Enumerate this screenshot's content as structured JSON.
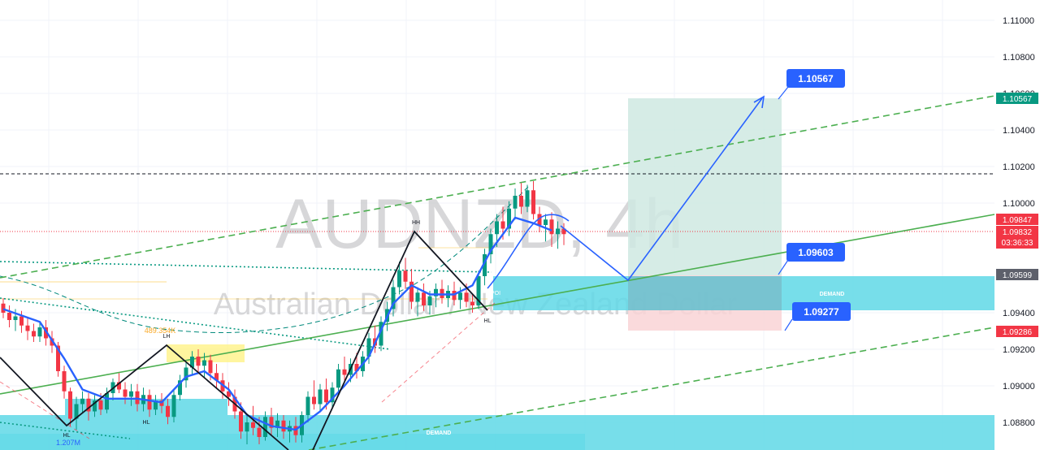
{
  "watermark": {
    "symbol": "AUDNZD, 4h",
    "name": "Australian Dollar / New Zealand Dollar"
  },
  "price_axis": {
    "ticks": [
      "1.11000",
      "1.10800",
      "1.10600",
      "1.10400",
      "1.10200",
      "1.10000",
      "1.09400",
      "1.09200",
      "1.09000",
      "1.08800"
    ]
  },
  "axis_tags": [
    {
      "value": "1.10567",
      "color": "#089981"
    },
    {
      "value": "1.09847",
      "color": "#f23645"
    },
    {
      "value": "1.09832",
      "color": "#f23645",
      "sub": "03:36:33"
    },
    {
      "value": "1.09599",
      "color": "#5d606b"
    },
    {
      "value": "1.09286",
      "color": "#f23645"
    }
  ],
  "callouts": [
    "1.10567",
    "1.09603",
    "1.09277"
  ],
  "zone_labels": {
    "demand_upper": "DEMAND",
    "demand_lower": "DEMAND",
    "poi": "POI"
  },
  "swing_labels": {
    "hh": "HH",
    "hl_right": "HL",
    "lh_left": "LH",
    "hl_left": "HL",
    "hl_far": "HL"
  },
  "volume_labels": {
    "v1": "489.354K",
    "v2": "1.207M"
  },
  "colors": {
    "bull": "#089981",
    "bear": "#f23645",
    "demand": "#5fd8e6",
    "projection": "#2962ff",
    "ma": "#2962ff",
    "trendline": "#4caf50",
    "target_zone": "#cfe9e2",
    "stop_zone": "#f9d3d6"
  },
  "chart_data": {
    "type": "candlestick",
    "symbol": "AUDNZD",
    "timeframe": "4h",
    "ylim": [
      1.0868,
      1.1116
    ],
    "candles": [
      [
        1.0945,
        1.0948,
        1.0937,
        1.094
      ],
      [
        1.094,
        1.0944,
        1.0932,
        1.0936
      ],
      [
        1.0936,
        1.0942,
        1.093,
        1.0938
      ],
      [
        1.0938,
        1.0941,
        1.0929,
        1.0933
      ],
      [
        1.0933,
        1.0937,
        1.0925,
        1.093
      ],
      [
        1.093,
        1.0934,
        1.0924,
        1.0927
      ],
      [
        1.0927,
        1.0935,
        1.0924,
        1.0932
      ],
      [
        1.0932,
        1.0936,
        1.0922,
        1.0926
      ],
      [
        1.0926,
        1.093,
        1.0918,
        1.0922
      ],
      [
        1.0922,
        1.0924,
        1.0905,
        1.0908
      ],
      [
        1.0908,
        1.0911,
        1.0893,
        1.0897
      ],
      [
        1.0897,
        1.0899,
        1.0878,
        1.0882
      ],
      [
        1.0882,
        1.0894,
        1.0876,
        1.089
      ],
      [
        1.089,
        1.0897,
        1.0885,
        1.0893
      ],
      [
        1.0893,
        1.0896,
        1.0881,
        1.0886
      ],
      [
        1.0886,
        1.0895,
        1.0883,
        1.0892
      ],
      [
        1.0892,
        1.0896,
        1.0884,
        1.0887
      ],
      [
        1.0887,
        1.0899,
        1.0885,
        1.0896
      ],
      [
        1.0896,
        1.0904,
        1.0892,
        1.0902
      ],
      [
        1.0902,
        1.0907,
        1.0896,
        1.0898
      ],
      [
        1.0898,
        1.0902,
        1.089,
        1.0894
      ],
      [
        1.0894,
        1.0901,
        1.0889,
        1.0897
      ],
      [
        1.0897,
        1.0901,
        1.0886,
        1.089
      ],
      [
        1.089,
        1.0899,
        1.0886,
        1.0895
      ],
      [
        1.0895,
        1.0898,
        1.0883,
        1.0887
      ],
      [
        1.0887,
        1.0895,
        1.0884,
        1.0892
      ],
      [
        1.0892,
        1.0896,
        1.0885,
        1.0889
      ],
      [
        1.0889,
        1.0893,
        1.0879,
        1.0883
      ],
      [
        1.0883,
        1.0898,
        1.088,
        1.0895
      ],
      [
        1.0895,
        1.0906,
        1.0892,
        1.0903
      ],
      [
        1.0903,
        1.0913,
        1.0899,
        1.091
      ],
      [
        1.091,
        1.0919,
        1.0906,
        1.0916
      ],
      [
        1.0916,
        1.092,
        1.0907,
        1.0911
      ],
      [
        1.0911,
        1.0918,
        1.0904,
        1.0914
      ],
      [
        1.0914,
        1.0917,
        1.0903,
        1.0907
      ],
      [
        1.0907,
        1.0912,
        1.0899,
        1.0903
      ],
      [
        1.0903,
        1.0907,
        1.0893,
        1.0897
      ],
      [
        1.0897,
        1.0902,
        1.0889,
        1.0894
      ],
      [
        1.0894,
        1.0898,
        1.0882,
        1.0886
      ],
      [
        1.0886,
        1.0891,
        1.0871,
        1.0875
      ],
      [
        1.0875,
        1.0884,
        1.0868,
        1.088
      ],
      [
        1.088,
        1.0889,
        1.0873,
        1.0877
      ],
      [
        1.0877,
        1.0883,
        1.0868,
        1.0872
      ],
      [
        1.0872,
        1.0886,
        1.087,
        1.0883
      ],
      [
        1.0883,
        1.0888,
        1.0873,
        1.0877
      ],
      [
        1.0877,
        1.0885,
        1.0872,
        1.0881
      ],
      [
        1.0881,
        1.0884,
        1.0871,
        1.0875
      ],
      [
        1.0875,
        1.0881,
        1.0869,
        1.0878
      ],
      [
        1.0878,
        1.0883,
        1.0869,
        1.0873
      ],
      [
        1.0873,
        1.0886,
        1.0869,
        1.0884
      ],
      [
        1.0884,
        1.0897,
        1.088,
        1.0894
      ],
      [
        1.0894,
        1.0903,
        1.0887,
        1.089
      ],
      [
        1.089,
        1.0901,
        1.0886,
        1.0898
      ],
      [
        1.0898,
        1.0904,
        1.0887,
        1.0891
      ],
      [
        1.0891,
        1.0902,
        1.0888,
        1.0899
      ],
      [
        1.0899,
        1.0912,
        1.0895,
        1.0909
      ],
      [
        1.0909,
        1.0916,
        1.0902,
        1.0906
      ],
      [
        1.0906,
        1.0915,
        1.0902,
        1.0912
      ],
      [
        1.0912,
        1.0918,
        1.0904,
        1.0908
      ],
      [
        1.0908,
        1.0919,
        1.0905,
        1.0916
      ],
      [
        1.0916,
        1.0929,
        1.0912,
        1.0926
      ],
      [
        1.0926,
        1.0933,
        1.0918,
        1.0922
      ],
      [
        1.0922,
        1.0938,
        1.0919,
        1.0935
      ],
      [
        1.0935,
        1.0946,
        1.093,
        1.0942
      ],
      [
        1.0942,
        1.0958,
        1.0938,
        1.0954
      ],
      [
        1.0954,
        1.0968,
        1.095,
        1.0963
      ],
      [
        1.0963,
        1.097,
        1.0953,
        1.0957
      ],
      [
        1.0957,
        1.0964,
        1.0942,
        1.0946
      ],
      [
        1.0946,
        1.0954,
        1.0938,
        1.0951
      ],
      [
        1.0951,
        1.0956,
        1.0941,
        1.0944
      ],
      [
        1.0944,
        1.0952,
        1.0939,
        1.0949
      ],
      [
        1.0949,
        1.0956,
        1.0943,
        1.0953
      ],
      [
        1.0953,
        1.0958,
        1.0945,
        1.0948
      ],
      [
        1.0948,
        1.0955,
        1.0943,
        1.0952
      ],
      [
        1.0952,
        1.0957,
        1.0944,
        1.0947
      ],
      [
        1.0947,
        1.0954,
        1.0942,
        1.0951
      ],
      [
        1.0951,
        1.0956,
        1.0943,
        1.0946
      ],
      [
        1.0946,
        1.095,
        1.094,
        1.0944
      ],
      [
        1.0944,
        1.0963,
        1.0942,
        1.096
      ],
      [
        1.096,
        1.0975,
        1.0955,
        1.0972
      ],
      [
        1.0972,
        1.0986,
        1.0967,
        1.0983
      ],
      [
        1.0983,
        1.0994,
        1.0976,
        1.099
      ],
      [
        1.099,
        1.0998,
        1.098,
        1.0986
      ],
      [
        1.0986,
        1.1001,
        1.0982,
        1.0997
      ],
      [
        1.0997,
        1.1008,
        1.0991,
        1.1004
      ],
      [
        1.1004,
        1.1011,
        1.0994,
        1.0998
      ],
      [
        1.0998,
        1.101,
        1.0995,
        1.1007
      ],
      [
        1.1007,
        1.1012,
        1.0991,
        1.0994
      ],
      [
        1.0994,
        1.0998,
        1.0984,
        1.0988
      ],
      [
        1.0988,
        1.0994,
        1.0979,
        1.0991
      ],
      [
        1.0991,
        1.0995,
        1.0976,
        1.0983
      ],
      [
        1.0983,
        1.099,
        1.0975,
        1.0986
      ],
      [
        1.0986,
        1.0989,
        1.0977,
        1.0983
      ]
    ],
    "moving_average": [
      [
        0,
        1.0942
      ],
      [
        6,
        1.0935
      ],
      [
        10,
        1.0915
      ],
      [
        13,
        1.0898
      ],
      [
        17,
        1.0893
      ],
      [
        22,
        1.0893
      ],
      [
        26,
        1.0891
      ],
      [
        30,
        1.0905
      ],
      [
        33,
        1.0908
      ],
      [
        37,
        1.0898
      ],
      [
        40,
        1.0884
      ],
      [
        44,
        1.0878
      ],
      [
        48,
        1.0876
      ],
      [
        52,
        1.0886
      ],
      [
        56,
        1.09
      ],
      [
        60,
        1.0916
      ],
      [
        64,
        1.0945
      ],
      [
        67,
        1.0955
      ],
      [
        70,
        1.095
      ],
      [
        74,
        1.095
      ],
      [
        77,
        1.0955
      ],
      [
        80,
        1.0974
      ],
      [
        84,
        1.0992
      ],
      [
        87,
        1.0989
      ],
      [
        90,
        1.0985
      ]
    ],
    "levels": {
      "current_price": 1.09832,
      "last_close": 1.09847,
      "target": 1.10567,
      "entry": 1.09603,
      "stop": 1.09277,
      "demand_upper_axis": 1.09599,
      "stop_axis": 1.09286,
      "recent_high": 1.1014
    },
    "zones": [
      {
        "name": "demand",
        "top": 1.0958,
        "bottom": 1.0939
      },
      {
        "name": "demand",
        "top": 1.0882,
        "bottom": 1.086
      },
      {
        "name": "target",
        "top": 1.10567,
        "bottom": 1.09603
      },
      {
        "name": "stop",
        "top": 1.09603,
        "bottom": 1.09277
      }
    ],
    "projection_path": [
      [
        87,
        1.0991
      ],
      [
        92,
        1.096
      ],
      [
        100,
        1.10567
      ]
    ],
    "zigzag": [
      [
        0,
        1.0922
      ],
      [
        9,
        1.0876
      ],
      [
        22,
        1.092
      ],
      [
        39,
        1.086
      ],
      [
        57,
        1.098
      ],
      [
        70,
        1.0938
      ]
    ]
  }
}
